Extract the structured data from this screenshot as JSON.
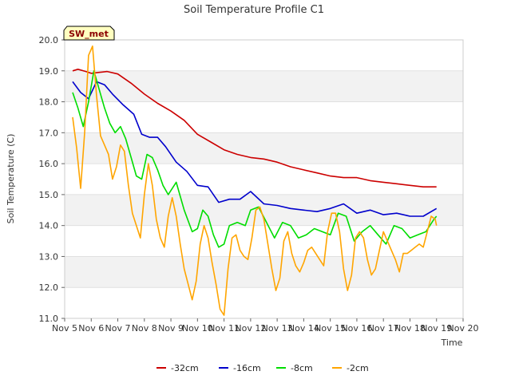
{
  "chart_data": {
    "type": "line",
    "title": "Soil Temperature Profile C1",
    "xlabel": "Time",
    "ylabel": "Soil Temperature (C)",
    "annotation": "SW_met",
    "x_ticks": [
      "Nov 5",
      "Nov 6",
      "Nov 7",
      "Nov 8",
      "Nov 9",
      "Nov 10",
      "Nov 11",
      "Nov 12",
      "Nov 13",
      "Nov 14",
      "Nov 15",
      "Nov 16",
      "Nov 17",
      "Nov 18",
      "Nov 19",
      "Nov 20"
    ],
    "y_ticks": [
      "11.0",
      "12.0",
      "13.0",
      "14.0",
      "15.0",
      "16.0",
      "17.0",
      "18.0",
      "19.0",
      "20.0"
    ],
    "xlim": [
      5.0,
      20.0
    ],
    "ylim": [
      11.0,
      20.0
    ],
    "grid": "horizontal alternating bands",
    "legend_position": "bottom",
    "series": [
      {
        "name": "-32cm",
        "color": "#cc0000",
        "x": [
          5.3,
          5.5,
          5.8,
          6.0,
          6.3,
          6.6,
          7.0,
          7.5,
          8.0,
          8.5,
          9.0,
          9.5,
          10.0,
          10.5,
          11.0,
          11.5,
          12.0,
          12.5,
          13.0,
          13.5,
          14.0,
          14.5,
          15.0,
          15.5,
          16.0,
          16.5,
          17.0,
          17.5,
          18.0,
          18.5,
          19.0
        ],
        "y": [
          19.0,
          19.05,
          18.98,
          18.92,
          18.95,
          18.98,
          18.9,
          18.6,
          18.25,
          17.95,
          17.7,
          17.4,
          16.95,
          16.7,
          16.45,
          16.3,
          16.2,
          16.15,
          16.05,
          15.9,
          15.8,
          15.7,
          15.6,
          15.55,
          15.55,
          15.45,
          15.4,
          15.35,
          15.3,
          15.25,
          15.25
        ]
      },
      {
        "name": "-16cm",
        "color": "#0000cc",
        "x": [
          5.3,
          5.6,
          5.9,
          6.2,
          6.5,
          6.8,
          7.2,
          7.6,
          7.9,
          8.2,
          8.5,
          8.8,
          9.2,
          9.6,
          10.0,
          10.4,
          10.8,
          11.2,
          11.6,
          12.0,
          12.5,
          13.0,
          13.5,
          14.0,
          14.5,
          15.0,
          15.5,
          16.0,
          16.5,
          17.0,
          17.5,
          18.0,
          18.5,
          19.0
        ],
        "y": [
          18.65,
          18.3,
          18.1,
          18.65,
          18.55,
          18.25,
          17.9,
          17.6,
          16.95,
          16.85,
          16.85,
          16.55,
          16.05,
          15.75,
          15.3,
          15.25,
          14.75,
          14.85,
          14.85,
          15.1,
          14.7,
          14.65,
          14.55,
          14.5,
          14.45,
          14.55,
          14.7,
          14.4,
          14.5,
          14.35,
          14.4,
          14.3,
          14.3,
          14.55
        ]
      },
      {
        "name": "-8cm",
        "color": "#00dd00",
        "x": [
          5.3,
          5.5,
          5.7,
          5.9,
          6.1,
          6.3,
          6.5,
          6.7,
          6.9,
          7.1,
          7.3,
          7.5,
          7.7,
          7.9,
          8.1,
          8.3,
          8.5,
          8.7,
          8.9,
          9.2,
          9.5,
          9.8,
          10.0,
          10.2,
          10.4,
          10.6,
          10.8,
          11.0,
          11.2,
          11.5,
          11.8,
          12.0,
          12.3,
          12.6,
          12.9,
          13.2,
          13.5,
          13.8,
          14.1,
          14.4,
          14.7,
          15.0,
          15.3,
          15.6,
          15.9,
          16.2,
          16.5,
          16.8,
          17.1,
          17.4,
          17.7,
          18.0,
          18.3,
          18.6,
          18.9,
          19.0
        ],
        "y": [
          18.3,
          17.8,
          17.2,
          18.0,
          19.0,
          18.4,
          17.8,
          17.3,
          17.0,
          17.2,
          16.8,
          16.2,
          15.6,
          15.5,
          16.3,
          16.2,
          15.8,
          15.3,
          15.0,
          15.4,
          14.5,
          13.8,
          13.9,
          14.5,
          14.3,
          13.7,
          13.3,
          13.4,
          14.0,
          14.1,
          14.0,
          14.5,
          14.6,
          14.1,
          13.6,
          14.1,
          14.0,
          13.6,
          13.7,
          13.9,
          13.8,
          13.7,
          14.4,
          14.3,
          13.5,
          13.8,
          14.0,
          13.7,
          13.4,
          14.0,
          13.9,
          13.6,
          13.7,
          13.8,
          14.2,
          14.3
        ]
      },
      {
        "name": "-2cm",
        "color": "#ffa500",
        "x": [
          5.3,
          5.45,
          5.6,
          5.75,
          5.9,
          6.05,
          6.2,
          6.35,
          6.5,
          6.65,
          6.8,
          6.95,
          7.1,
          7.25,
          7.4,
          7.55,
          7.7,
          7.85,
          8.0,
          8.15,
          8.3,
          8.45,
          8.6,
          8.75,
          8.9,
          9.05,
          9.2,
          9.35,
          9.5,
          9.65,
          9.8,
          9.95,
          10.1,
          10.25,
          10.4,
          10.55,
          10.7,
          10.85,
          11.0,
          11.15,
          11.3,
          11.45,
          11.6,
          11.75,
          11.9,
          12.05,
          12.2,
          12.35,
          12.5,
          12.65,
          12.8,
          12.95,
          13.1,
          13.25,
          13.4,
          13.55,
          13.7,
          13.85,
          14.0,
          14.15,
          14.3,
          14.45,
          14.6,
          14.75,
          14.9,
          15.05,
          15.2,
          15.35,
          15.5,
          15.65,
          15.8,
          15.95,
          16.1,
          16.25,
          16.4,
          16.55,
          16.7,
          16.85,
          17.0,
          17.15,
          17.3,
          17.45,
          17.6,
          17.75,
          17.9,
          18.05,
          18.2,
          18.35,
          18.5,
          18.65,
          18.8,
          18.95,
          19.0
        ],
        "y": [
          17.5,
          16.5,
          15.2,
          17.0,
          19.5,
          19.8,
          18.2,
          16.9,
          16.6,
          16.3,
          15.5,
          15.9,
          16.6,
          16.4,
          15.3,
          14.4,
          14.0,
          13.6,
          15.0,
          16.0,
          15.3,
          14.2,
          13.6,
          13.3,
          14.3,
          14.9,
          14.3,
          13.4,
          12.6,
          12.1,
          11.6,
          12.2,
          13.4,
          14.0,
          13.6,
          12.8,
          12.1,
          11.3,
          11.1,
          12.6,
          13.6,
          13.7,
          13.2,
          13.0,
          12.9,
          13.6,
          14.5,
          14.6,
          14.2,
          13.4,
          12.6,
          11.9,
          12.3,
          13.5,
          13.8,
          13.1,
          12.7,
          12.5,
          12.8,
          13.2,
          13.3,
          13.1,
          12.9,
          12.7,
          13.8,
          14.4,
          14.4,
          13.8,
          12.6,
          11.9,
          12.4,
          13.6,
          13.8,
          13.6,
          12.9,
          12.4,
          12.6,
          13.2,
          13.8,
          13.5,
          13.2,
          12.9,
          12.5,
          13.1,
          13.1,
          13.2,
          13.3,
          13.4,
          13.3,
          13.8,
          14.3,
          14.2,
          14.0
        ]
      }
    ]
  }
}
